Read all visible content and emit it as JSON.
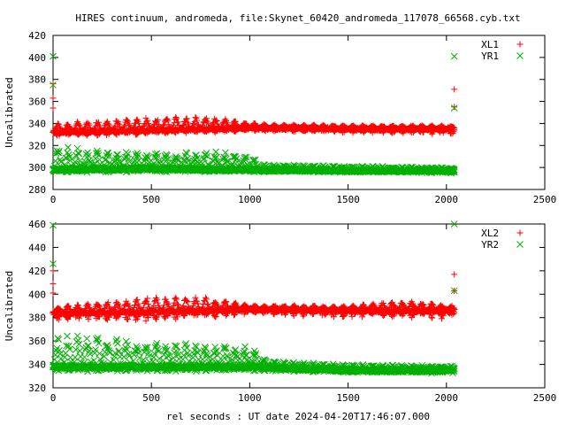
{
  "figure": {
    "title": "HIRES continuum, andromeda, file:Skynet_60420_andromeda_117078_66568.cyb.txt",
    "xlabel": "rel seconds : UT date 2024-04-20T17:46:07.000"
  },
  "colors": {
    "series_1": "#ff0000",
    "series_2": "#00b000",
    "axis": "#000000"
  },
  "chart_data": [
    {
      "type": "scatter",
      "ylabel": "Uncalibrated",
      "xlim": [
        0,
        2500
      ],
      "ylim": [
        280,
        420
      ],
      "xticks": [
        0,
        500,
        1000,
        1500,
        2000,
        2500
      ],
      "yticks": [
        280,
        300,
        320,
        340,
        360,
        380,
        400,
        420
      ],
      "legend_position": "top-right",
      "x_range": [
        0,
        2040
      ],
      "series": [
        {
          "name": "XL1",
          "marker": "plus",
          "color": "#ff0000",
          "baseline": [
            [
              0,
              332
            ],
            [
              500,
              334
            ],
            [
              1000,
              336
            ],
            [
              1500,
              335
            ],
            [
              2040,
              335
            ]
          ],
          "upper": [
            [
              0,
              340
            ],
            [
              500,
              346
            ],
            [
              800,
              346
            ],
            [
              1000,
              341
            ],
            [
              1100,
              339
            ],
            [
              2040,
              338
            ]
          ],
          "lower": [
            [
              0,
              328
            ],
            [
              500,
              330
            ],
            [
              1000,
              333
            ],
            [
              2040,
              330
            ]
          ],
          "outliers": [
            [
              0,
              363
            ],
            [
              0,
              354
            ],
            [
              0,
              376
            ],
            [
              2040,
              371
            ],
            [
              2040,
              355
            ]
          ]
        },
        {
          "name": "YR1",
          "marker": "cross",
          "color": "#00b000",
          "baseline": [
            [
              0,
              298
            ],
            [
              500,
              299
            ],
            [
              1000,
              298
            ],
            [
              1500,
              297
            ],
            [
              2040,
              297
            ]
          ],
          "upper": [
            [
              0,
              320
            ],
            [
              300,
              315
            ],
            [
              500,
              314
            ],
            [
              800,
              315
            ],
            [
              1000,
              314
            ],
            [
              1050,
              303
            ],
            [
              2040,
              300
            ]
          ],
          "lower": [
            [
              0,
              295
            ],
            [
              1000,
              296
            ],
            [
              2040,
              295
            ]
          ],
          "outliers": [
            [
              0,
              401
            ],
            [
              0,
              375
            ],
            [
              2040,
              401
            ],
            [
              2040,
              354
            ]
          ]
        }
      ]
    },
    {
      "type": "scatter",
      "ylabel": "Uncalibrated",
      "xlim": [
        0,
        2500
      ],
      "ylim": [
        320,
        460
      ],
      "xticks": [
        0,
        500,
        1000,
        1500,
        2000,
        2500
      ],
      "yticks": [
        320,
        340,
        360,
        380,
        400,
        420,
        440,
        460
      ],
      "legend_position": "top-right",
      "x_range": [
        0,
        2040
      ],
      "series": [
        {
          "name": "XL2",
          "marker": "plus",
          "color": "#ff0000",
          "baseline": [
            [
              0,
              384
            ],
            [
              500,
              385
            ],
            [
              1000,
              387
            ],
            [
              1500,
              386
            ],
            [
              2040,
              386
            ]
          ],
          "upper": [
            [
              0,
              389
            ],
            [
              500,
              398
            ],
            [
              800,
              397
            ],
            [
              1000,
              391
            ],
            [
              1500,
              390
            ],
            [
              1800,
              395
            ],
            [
              2040,
              390
            ]
          ],
          "lower": [
            [
              0,
              378
            ],
            [
              500,
              377
            ],
            [
              1000,
              382
            ],
            [
              1500,
              380
            ],
            [
              2040,
              379
            ]
          ],
          "outliers": [
            [
              0,
              409
            ],
            [
              0,
              401
            ],
            [
              0,
              420
            ],
            [
              2040,
              417
            ],
            [
              2040,
              403
            ]
          ]
        },
        {
          "name": "YR2",
          "marker": "cross",
          "color": "#00b000",
          "baseline": [
            [
              0,
              338
            ],
            [
              500,
              338
            ],
            [
              1000,
              338
            ],
            [
              1500,
              335
            ],
            [
              2040,
              335
            ]
          ],
          "upper": [
            [
              0,
              366
            ],
            [
              200,
              365
            ],
            [
              500,
              361
            ],
            [
              1000,
              356
            ],
            [
              1100,
              343
            ],
            [
              1500,
              340
            ],
            [
              2040,
              339
            ]
          ],
          "lower": [
            [
              0,
              334
            ],
            [
              1000,
              334
            ],
            [
              2040,
              332
            ]
          ],
          "outliers": [
            [
              0,
              459
            ],
            [
              0,
              426
            ],
            [
              2040,
              460
            ],
            [
              2040,
              403
            ]
          ]
        }
      ]
    }
  ]
}
